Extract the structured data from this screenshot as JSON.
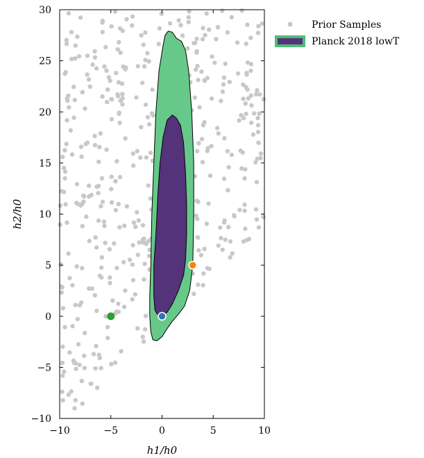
{
  "chart_data": {
    "type": "scatter",
    "xlabel": "h1/h0",
    "ylabel": "h2/h0",
    "xlim": [
      -10,
      10
    ],
    "ylim": [
      -10,
      30
    ],
    "xticks": [
      -10,
      -5,
      0,
      5,
      10
    ],
    "yticks": [
      -10,
      -5,
      0,
      5,
      10,
      15,
      20,
      25,
      30
    ],
    "xtick_labels": [
      "−10",
      "−5",
      "0",
      "5",
      "10"
    ],
    "ytick_labels": [
      "−10",
      "−5",
      "0",
      "5",
      "10",
      "15",
      "20",
      "25",
      "30"
    ],
    "grid": false,
    "legend_position": "outside-top-right",
    "legend": [
      {
        "label": "Prior Samples",
        "kind": "marker",
        "color": "#c8c8c8"
      },
      {
        "label": "Planck 2018 lowT",
        "kind": "patch",
        "color": "#55337a",
        "edge": "#4dbd74"
      }
    ],
    "prior_samples": {
      "name": "Prior Samples",
      "color": "#c8c8c8",
      "count": 420,
      "x_range": [
        -10,
        10
      ],
      "y_range": [
        -10,
        30
      ]
    },
    "contours": [
      {
        "name": "Planck 2018 lowT outer",
        "level": "outer",
        "fill": "#66c98a",
        "edge": "#000000",
        "points": [
          [
            0.6,
            27.9
          ],
          [
            1.0,
            27.8
          ],
          [
            1.4,
            27.2
          ],
          [
            1.9,
            26.9
          ],
          [
            2.3,
            26.0
          ],
          [
            2.6,
            24.0
          ],
          [
            2.9,
            20.0
          ],
          [
            3.1,
            15.0
          ],
          [
            3.1,
            10.0
          ],
          [
            3.0,
            5.0
          ],
          [
            2.7,
            2.5
          ],
          [
            2.2,
            1.0
          ],
          [
            1.6,
            0.2
          ],
          [
            1.0,
            -0.5
          ],
          [
            0.5,
            -1.2
          ],
          [
            0.0,
            -2.0
          ],
          [
            -0.5,
            -2.4
          ],
          [
            -0.9,
            -2.3
          ],
          [
            -1.1,
            -1.5
          ],
          [
            -1.2,
            0.0
          ],
          [
            -1.2,
            2.0
          ],
          [
            -1.1,
            5.0
          ],
          [
            -1.0,
            10.0
          ],
          [
            -0.8,
            15.0
          ],
          [
            -0.6,
            20.0
          ],
          [
            -0.3,
            24.0
          ],
          [
            0.1,
            26.5
          ],
          [
            0.3,
            27.5
          ]
        ]
      },
      {
        "name": "Planck 2018 lowT inner",
        "level": "inner",
        "fill": "#55337a",
        "edge": "#000000",
        "points": [
          [
            1.0,
            19.7
          ],
          [
            1.4,
            19.4
          ],
          [
            1.8,
            18.7
          ],
          [
            2.1,
            17.0
          ],
          [
            2.3,
            14.0
          ],
          [
            2.4,
            11.0
          ],
          [
            2.4,
            8.0
          ],
          [
            2.3,
            5.5
          ],
          [
            2.1,
            4.0
          ],
          [
            1.6,
            2.5
          ],
          [
            1.0,
            1.2
          ],
          [
            0.5,
            0.4
          ],
          [
            0.0,
            0.0
          ],
          [
            -0.4,
            0.1
          ],
          [
            -0.7,
            0.6
          ],
          [
            -0.8,
            2.0
          ],
          [
            -0.8,
            5.0
          ],
          [
            -0.6,
            8.0
          ],
          [
            -0.4,
            12.0
          ],
          [
            -0.2,
            15.0
          ],
          [
            0.1,
            17.5
          ],
          [
            0.5,
            19.2
          ]
        ]
      }
    ],
    "markers": [
      {
        "name": "blue-point",
        "x": 0,
        "y": 0,
        "color": "#2e75b6",
        "stroke": "#ffffff"
      },
      {
        "name": "orange-point",
        "x": 3,
        "y": 5,
        "color": "#ff7f0e",
        "stroke": "#ffffff"
      },
      {
        "name": "green-point",
        "x": -5,
        "y": 0,
        "color": "#2ca02c",
        "stroke": "none"
      }
    ]
  }
}
